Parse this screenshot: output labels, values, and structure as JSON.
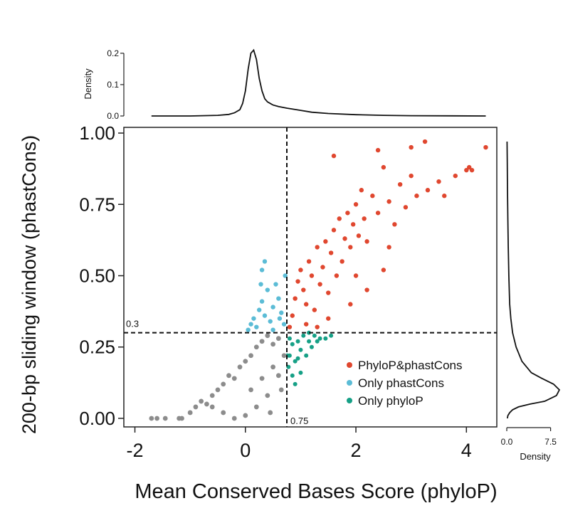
{
  "chart_data": {
    "type": "scatter",
    "title": "",
    "xlabel": "Mean Conserved Bases Score (phyloP)",
    "ylabel": "200-bp sliding window (phastCons)",
    "xlim": [
      -2.2,
      4.55
    ],
    "ylim": [
      -0.03,
      1.02
    ],
    "xticks": [
      -2,
      0,
      2,
      4
    ],
    "xtick_labels": [
      "-2",
      "0",
      "2",
      "4"
    ],
    "yticks": [
      0,
      0.25,
      0.5,
      0.75,
      1
    ],
    "ytick_labels": [
      "0.00",
      "0.25",
      "0.50",
      "0.75",
      "1.00"
    ],
    "grid": false,
    "legend_position": "bottom-right",
    "thresholds": {
      "x": 0.75,
      "x_label": "0.75",
      "y": 0.3,
      "y_label": "0.3"
    },
    "colors": {
      "both": "#e0472f",
      "only_phastcons": "#5bbcd6",
      "only_phylop": "#16a086",
      "neither": "#8c8c8c"
    },
    "series": [
      {
        "name": "PhyloP&phastCons",
        "color": "#e0472f",
        "points": [
          [
            0.8,
            0.32
          ],
          [
            0.85,
            0.36
          ],
          [
            0.9,
            0.42
          ],
          [
            0.95,
            0.48
          ],
          [
            1.0,
            0.52
          ],
          [
            1.05,
            0.45
          ],
          [
            1.1,
            0.4
          ],
          [
            1.15,
            0.55
          ],
          [
            1.2,
            0.5
          ],
          [
            1.25,
            0.38
          ],
          [
            1.3,
            0.6
          ],
          [
            1.35,
            0.47
          ],
          [
            1.4,
            0.53
          ],
          [
            1.45,
            0.62
          ],
          [
            1.5,
            0.44
          ],
          [
            1.55,
            0.58
          ],
          [
            1.6,
            0.66
          ],
          [
            1.65,
            0.5
          ],
          [
            1.7,
            0.7
          ],
          [
            1.75,
            0.55
          ],
          [
            1.8,
            0.63
          ],
          [
            1.85,
            0.72
          ],
          [
            1.9,
            0.6
          ],
          [
            1.95,
            0.68
          ],
          [
            2.0,
            0.75
          ],
          [
            2.05,
            0.64
          ],
          [
            2.1,
            0.8
          ],
          [
            2.15,
            0.7
          ],
          [
            2.2,
            0.62
          ],
          [
            2.3,
            0.78
          ],
          [
            2.4,
            0.72
          ],
          [
            2.5,
            0.88
          ],
          [
            2.6,
            0.76
          ],
          [
            2.7,
            0.68
          ],
          [
            2.8,
            0.82
          ],
          [
            2.9,
            0.74
          ],
          [
            3.0,
            0.85
          ],
          [
            3.1,
            0.78
          ],
          [
            3.25,
            0.97
          ],
          [
            3.3,
            0.8
          ],
          [
            3.5,
            0.83
          ],
          [
            3.6,
            0.78
          ],
          [
            3.8,
            0.85
          ],
          [
            4.0,
            0.87
          ],
          [
            4.05,
            0.88
          ],
          [
            4.1,
            0.87
          ],
          [
            4.35,
            0.95
          ],
          [
            2.4,
            0.94
          ],
          [
            1.6,
            0.92
          ],
          [
            3.0,
            0.95
          ],
          [
            2.2,
            0.45
          ],
          [
            2.0,
            0.5
          ],
          [
            1.3,
            0.32
          ],
          [
            1.5,
            0.35
          ],
          [
            1.9,
            0.4
          ],
          [
            2.6,
            0.6
          ],
          [
            2.5,
            0.52
          ],
          [
            1.1,
            0.33
          ]
        ]
      },
      {
        "name": "Only phastCons",
        "color": "#5bbcd6",
        "points": [
          [
            0.05,
            0.31
          ],
          [
            0.1,
            0.33
          ],
          [
            0.15,
            0.35
          ],
          [
            0.2,
            0.32
          ],
          [
            0.25,
            0.38
          ],
          [
            0.3,
            0.41
          ],
          [
            0.35,
            0.36
          ],
          [
            0.4,
            0.45
          ],
          [
            0.45,
            0.34
          ],
          [
            0.5,
            0.39
          ],
          [
            0.55,
            0.47
          ],
          [
            0.6,
            0.42
          ],
          [
            0.65,
            0.37
          ],
          [
            0.7,
            0.33
          ],
          [
            0.72,
            0.5
          ],
          [
            0.3,
            0.52
          ],
          [
            0.35,
            0.55
          ],
          [
            0.28,
            0.47
          ],
          [
            0.5,
            0.31
          ],
          [
            0.62,
            0.35
          ]
        ]
      },
      {
        "name": "Only phyloP",
        "color": "#16a086",
        "points": [
          [
            0.78,
            0.18
          ],
          [
            0.8,
            0.22
          ],
          [
            0.85,
            0.26
          ],
          [
            0.9,
            0.2
          ],
          [
            0.95,
            0.27
          ],
          [
            1.0,
            0.24
          ],
          [
            1.05,
            0.29
          ],
          [
            1.1,
            0.22
          ],
          [
            1.15,
            0.27
          ],
          [
            1.2,
            0.25
          ],
          [
            1.25,
            0.29
          ],
          [
            1.3,
            0.27
          ],
          [
            1.35,
            0.28
          ],
          [
            1.45,
            0.28
          ],
          [
            1.55,
            0.29
          ],
          [
            0.85,
            0.15
          ],
          [
            0.9,
            0.12
          ],
          [
            1.0,
            0.16
          ],
          [
            0.76,
            0.22
          ],
          [
            0.8,
            0.28
          ],
          [
            0.95,
            0.21
          ],
          [
            1.15,
            0.3
          ]
        ]
      },
      {
        "name": "",
        "color": "#8c8c8c",
        "points": [
          [
            -1.7,
            0.0
          ],
          [
            -1.6,
            0.0
          ],
          [
            -1.45,
            0.0
          ],
          [
            -1.2,
            0.0
          ],
          [
            -1.15,
            0.0
          ],
          [
            -1.0,
            0.02
          ],
          [
            -0.9,
            0.04
          ],
          [
            -0.8,
            0.06
          ],
          [
            -0.7,
            0.05
          ],
          [
            -0.6,
            0.08
          ],
          [
            -0.5,
            0.1
          ],
          [
            -0.4,
            0.12
          ],
          [
            -0.3,
            0.15
          ],
          [
            -0.2,
            0.14
          ],
          [
            -0.1,
            0.18
          ],
          [
            0.0,
            0.2
          ],
          [
            0.1,
            0.22
          ],
          [
            0.2,
            0.25
          ],
          [
            0.3,
            0.27
          ],
          [
            0.4,
            0.29
          ],
          [
            0.5,
            0.26
          ],
          [
            0.6,
            0.28
          ],
          [
            0.7,
            0.22
          ],
          [
            0.6,
            0.15
          ],
          [
            0.4,
            0.08
          ],
          [
            0.2,
            0.04
          ],
          [
            0.0,
            0.01
          ],
          [
            -0.2,
            0.0
          ],
          [
            -0.4,
            0.02
          ],
          [
            -0.6,
            0.04
          ],
          [
            0.1,
            0.1
          ],
          [
            0.3,
            0.14
          ],
          [
            0.5,
            0.18
          ],
          [
            0.65,
            0.1
          ],
          [
            0.45,
            0.02
          ]
        ]
      }
    ],
    "top_marginal": {
      "ylabel": "Density",
      "yticks": [
        0.0,
        0.1,
        0.2
      ],
      "ytick_labels": [
        "0.0",
        "0.1",
        "0.2"
      ],
      "ylim": [
        0,
        0.22
      ],
      "curve": [
        [
          -1.7,
          0.0
        ],
        [
          -1.0,
          0.0
        ],
        [
          -0.5,
          0.002
        ],
        [
          -0.3,
          0.005
        ],
        [
          -0.2,
          0.01
        ],
        [
          -0.1,
          0.02
        ],
        [
          -0.05,
          0.04
        ],
        [
          0.0,
          0.08
        ],
        [
          0.05,
          0.15
        ],
        [
          0.1,
          0.2
        ],
        [
          0.15,
          0.21
        ],
        [
          0.2,
          0.18
        ],
        [
          0.25,
          0.12
        ],
        [
          0.3,
          0.08
        ],
        [
          0.35,
          0.055
        ],
        [
          0.4,
          0.045
        ],
        [
          0.5,
          0.035
        ],
        [
          0.6,
          0.03
        ],
        [
          0.75,
          0.025
        ],
        [
          1.0,
          0.018
        ],
        [
          1.2,
          0.012
        ],
        [
          1.5,
          0.008
        ],
        [
          2.0,
          0.004
        ],
        [
          2.5,
          0.002
        ],
        [
          3.0,
          0.001
        ],
        [
          4.35,
          0.0
        ]
      ]
    },
    "right_marginal": {
      "xlabel": "Density",
      "xticks": [
        0.0,
        7.5
      ],
      "xtick_labels": [
        "0.0",
        "7.5"
      ],
      "xlim": [
        0,
        9.5
      ],
      "curve": [
        [
          0.0,
          0.1
        ],
        [
          0.01,
          0.2
        ],
        [
          0.02,
          0.5
        ],
        [
          0.03,
          1.0
        ],
        [
          0.04,
          2.0
        ],
        [
          0.05,
          4.0
        ],
        [
          0.06,
          6.5
        ],
        [
          0.08,
          8.5
        ],
        [
          0.1,
          9.0
        ],
        [
          0.12,
          8.0
        ],
        [
          0.14,
          6.0
        ],
        [
          0.16,
          4.2
        ],
        [
          0.2,
          2.6
        ],
        [
          0.25,
          1.6
        ],
        [
          0.3,
          1.0
        ],
        [
          0.35,
          0.7
        ],
        [
          0.4,
          0.5
        ],
        [
          0.5,
          0.35
        ],
        [
          0.6,
          0.25
        ],
        [
          0.7,
          0.18
        ],
        [
          0.8,
          0.12
        ],
        [
          0.9,
          0.08
        ],
        [
          0.97,
          0.05
        ]
      ]
    }
  }
}
